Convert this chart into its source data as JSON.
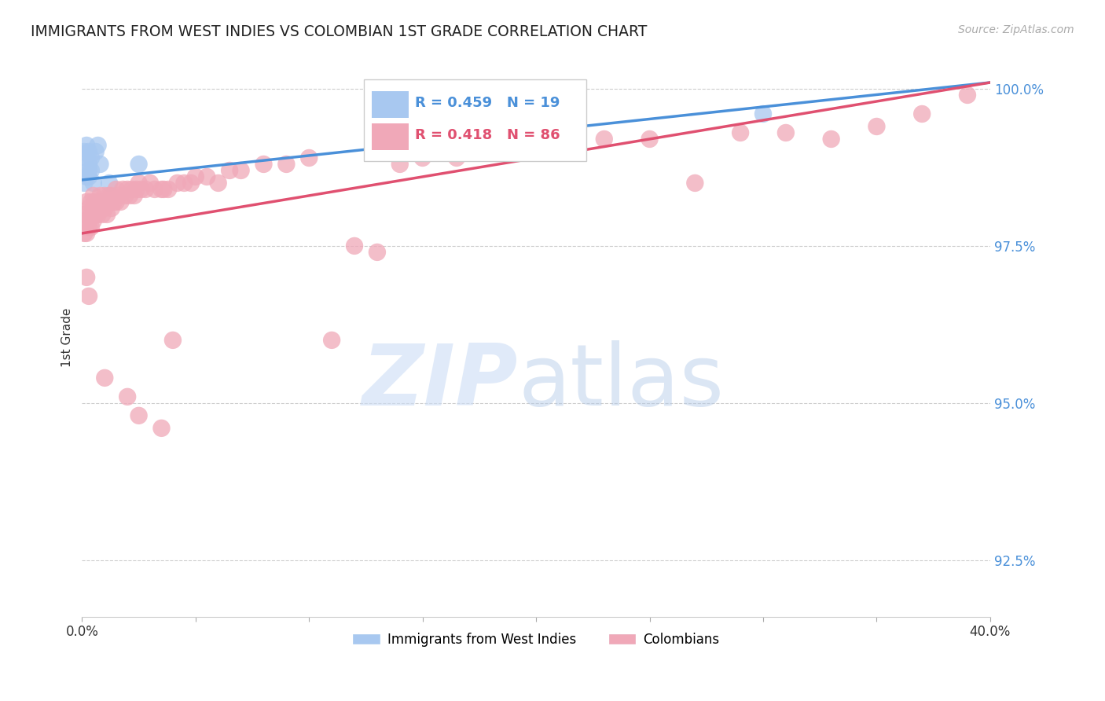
{
  "title": "IMMIGRANTS FROM WEST INDIES VS COLOMBIAN 1ST GRADE CORRELATION CHART",
  "source": "Source: ZipAtlas.com",
  "ylabel": "1st Grade",
  "xlim": [
    0.0,
    0.4
  ],
  "ylim": [
    0.916,
    1.005
  ],
  "yticks": [
    0.925,
    0.95,
    0.975,
    1.0
  ],
  "ytick_labels": [
    "92.5%",
    "95.0%",
    "97.5%",
    "100.0%"
  ],
  "xticks": [
    0.0,
    0.05,
    0.1,
    0.15,
    0.2,
    0.25,
    0.3,
    0.35,
    0.4
  ],
  "xtick_labels": [
    "0.0%",
    "",
    "",
    "",
    "",
    "",
    "",
    "",
    "40.0%"
  ],
  "blue_R": 0.459,
  "blue_N": 19,
  "pink_R": 0.418,
  "pink_N": 86,
  "blue_scatter_color": "#a8c8f0",
  "pink_scatter_color": "#f0a8b8",
  "blue_line_color": "#4a90d9",
  "pink_line_color": "#e05070",
  "background_color": "#ffffff",
  "grid_color": "#cccccc",
  "blue_line_y0": 0.9855,
  "blue_line_y1": 1.001,
  "pink_line_y0": 0.977,
  "pink_line_y1": 1.001,
  "blue_points_x": [
    0.001,
    0.002,
    0.002,
    0.003,
    0.003,
    0.004,
    0.004,
    0.005,
    0.006,
    0.007,
    0.008,
    0.001,
    0.002,
    0.003,
    0.003,
    0.012,
    0.025,
    0.19,
    0.3
  ],
  "blue_points_y": [
    0.99,
    0.989,
    0.991,
    0.988,
    0.99,
    0.987,
    0.989,
    0.985,
    0.99,
    0.991,
    0.988,
    0.985,
    0.986,
    0.987,
    0.986,
    0.985,
    0.988,
    0.991,
    0.996
  ],
  "pink_points_x": [
    0.001,
    0.001,
    0.002,
    0.002,
    0.002,
    0.003,
    0.003,
    0.003,
    0.004,
    0.004,
    0.004,
    0.005,
    0.005,
    0.005,
    0.006,
    0.006,
    0.007,
    0.007,
    0.008,
    0.008,
    0.009,
    0.009,
    0.01,
    0.01,
    0.011,
    0.011,
    0.012,
    0.012,
    0.013,
    0.013,
    0.014,
    0.015,
    0.015,
    0.016,
    0.017,
    0.018,
    0.019,
    0.02,
    0.021,
    0.022,
    0.023,
    0.024,
    0.025,
    0.026,
    0.028,
    0.03,
    0.032,
    0.035,
    0.036,
    0.038,
    0.04,
    0.042,
    0.045,
    0.048,
    0.05,
    0.055,
    0.06,
    0.065,
    0.07,
    0.08,
    0.09,
    0.1,
    0.11,
    0.12,
    0.13,
    0.14,
    0.15,
    0.165,
    0.175,
    0.19,
    0.21,
    0.23,
    0.25,
    0.27,
    0.29,
    0.31,
    0.33,
    0.35,
    0.37,
    0.39,
    0.002,
    0.003,
    0.01,
    0.02,
    0.025,
    0.035
  ],
  "pink_points_y": [
    0.98,
    0.977,
    0.982,
    0.979,
    0.977,
    0.981,
    0.979,
    0.978,
    0.982,
    0.98,
    0.978,
    0.983,
    0.981,
    0.979,
    0.982,
    0.98,
    0.981,
    0.98,
    0.983,
    0.981,
    0.982,
    0.98,
    0.983,
    0.981,
    0.982,
    0.98,
    0.983,
    0.982,
    0.983,
    0.981,
    0.982,
    0.984,
    0.982,
    0.983,
    0.982,
    0.984,
    0.983,
    0.984,
    0.983,
    0.984,
    0.983,
    0.984,
    0.985,
    0.984,
    0.984,
    0.985,
    0.984,
    0.984,
    0.984,
    0.984,
    0.96,
    0.985,
    0.985,
    0.985,
    0.986,
    0.986,
    0.985,
    0.987,
    0.987,
    0.988,
    0.988,
    0.989,
    0.96,
    0.975,
    0.974,
    0.988,
    0.989,
    0.989,
    0.99,
    0.991,
    0.991,
    0.992,
    0.992,
    0.985,
    0.993,
    0.993,
    0.992,
    0.994,
    0.996,
    0.999,
    0.97,
    0.967,
    0.954,
    0.951,
    0.948,
    0.946
  ]
}
